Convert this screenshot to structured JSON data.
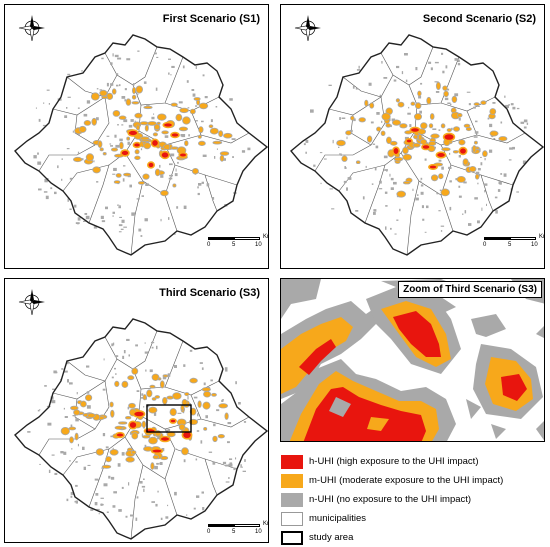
{
  "panels": [
    {
      "title": "First Scenario (S1)"
    },
    {
      "title": "Second Scenario (S2)"
    },
    {
      "title": "Third Scenario (S3)"
    }
  ],
  "zoom_panel": {
    "title": "Zoom of Third Scenario (S3)"
  },
  "scale_bar": {
    "unit": "Km",
    "ticks": [
      "0",
      "5",
      "10"
    ]
  },
  "north_arrow_icon": "north-arrow-compass",
  "legend": [
    {
      "label": "h-UHI (high exposure to the UHI impact)",
      "color": "#e8150e",
      "border": "#e8150e"
    },
    {
      "label": "m-UHI (moderate exposure to the UHI impact)",
      "color": "#f7a81b",
      "border": "#f7a81b"
    },
    {
      "label": "n-UHI (no exposure to the UHI impact)",
      "color": "#a9a9a9",
      "border": "#a9a9a9"
    },
    {
      "label": "municipalities",
      "color": "#ffffff",
      "border": "#999999"
    },
    {
      "label": "study area",
      "color": "#ffffff",
      "border": "#000000"
    }
  ],
  "colors": {
    "h_uhi": "#e8150e",
    "m_uhi": "#f7a81b",
    "n_uhi": "#a9a9a9",
    "boundary": "#222222",
    "municipality": "#555555"
  }
}
